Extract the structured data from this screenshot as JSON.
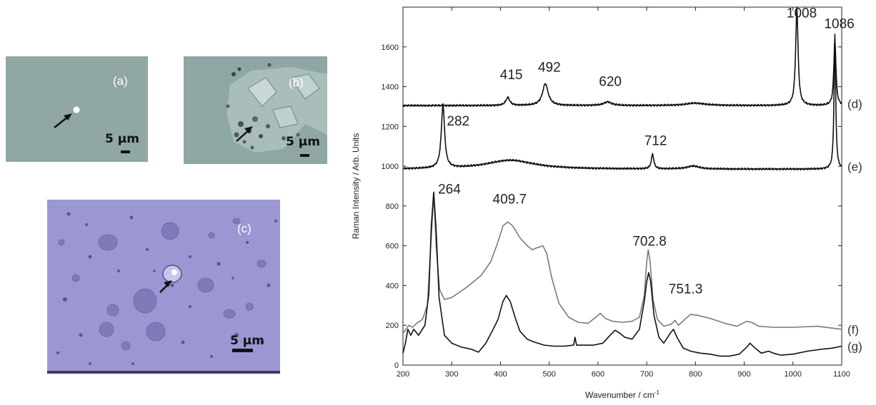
{
  "micrographs": {
    "a": {
      "label": "(a)",
      "scale": "5 μm"
    },
    "b": {
      "label": "(b)",
      "scale": "5 μm"
    },
    "c": {
      "label": "(c)",
      "scale": "5 μm"
    }
  },
  "chart_data": {
    "type": "line",
    "xlabel": "Wavenumber / cm",
    "xlabel_superscript": "-1",
    "ylabel": "Raman Intensity / Arb. Units",
    "xlim": [
      200,
      1100
    ],
    "ylim": [
      0,
      1800
    ],
    "xticks": [
      200,
      300,
      400,
      500,
      600,
      700,
      800,
      900,
      1000,
      1100
    ],
    "yticks": [
      0,
      200,
      400,
      600,
      800,
      1000,
      1200,
      1400,
      1600
    ],
    "colors": {
      "black_trace": "#111111",
      "gray_trace": "#7a7a7a"
    },
    "series": [
      {
        "id": "d",
        "label": "(d)",
        "color": "#111111",
        "baseline": 1305,
        "peaks": [
          {
            "x": 415,
            "label": "415",
            "height": 40,
            "width": 5
          },
          {
            "x": 492,
            "label": "492",
            "height": 110,
            "width": 7
          },
          {
            "x": 620,
            "label": "620",
            "height": 18,
            "width": 10
          },
          {
            "x": 800,
            "height": 12,
            "width": 25
          },
          {
            "x": 1008,
            "label": "1008",
            "height": 490,
            "width": 3
          },
          {
            "x": 1086,
            "label": "1086",
            "height": 340,
            "width": 2.5
          }
        ]
      },
      {
        "id": "e",
        "label": "(e)",
        "color": "#111111",
        "baseline": 985,
        "peaks": [
          {
            "x": 282,
            "label": "282",
            "height": 320,
            "width": 4
          },
          {
            "x": 420,
            "height": 45,
            "width": 60
          },
          {
            "x": 712,
            "label": "712",
            "height": 75,
            "width": 3
          },
          {
            "x": 795,
            "height": 15,
            "width": 15
          },
          {
            "x": 1086,
            "height": 680,
            "width": 2
          }
        ]
      },
      {
        "id": "f",
        "label": "(f)",
        "color": "#7a7a7a",
        "points": [
          [
            200,
            160
          ],
          [
            212,
            200
          ],
          [
            220,
            190
          ],
          [
            228,
            210
          ],
          [
            240,
            230
          ],
          [
            250,
            300
          ],
          [
            257,
            600
          ],
          [
            263,
            860
          ],
          [
            268,
            600
          ],
          [
            275,
            380
          ],
          [
            285,
            330
          ],
          [
            300,
            340
          ],
          [
            330,
            390
          ],
          [
            360,
            450
          ],
          [
            380,
            520
          ],
          [
            395,
            620
          ],
          [
            405,
            700
          ],
          [
            415,
            720
          ],
          [
            425,
            700
          ],
          [
            440,
            640
          ],
          [
            455,
            600
          ],
          [
            465,
            580
          ],
          [
            475,
            590
          ],
          [
            487,
            600
          ],
          [
            495,
            560
          ],
          [
            505,
            440
          ],
          [
            520,
            310
          ],
          [
            540,
            240
          ],
          [
            560,
            215
          ],
          [
            580,
            210
          ],
          [
            595,
            240
          ],
          [
            605,
            260
          ],
          [
            615,
            235
          ],
          [
            630,
            220
          ],
          [
            650,
            215
          ],
          [
            670,
            220
          ],
          [
            685,
            240
          ],
          [
            695,
            350
          ],
          [
            700,
            520
          ],
          [
            703,
            580
          ],
          [
            707,
            520
          ],
          [
            713,
            330
          ],
          [
            722,
            230
          ],
          [
            735,
            195
          ],
          [
            750,
            205
          ],
          [
            758,
            225
          ],
          [
            765,
            200
          ],
          [
            778,
            230
          ],
          [
            790,
            255
          ],
          [
            805,
            250
          ],
          [
            830,
            235
          ],
          [
            860,
            210
          ],
          [
            885,
            195
          ],
          [
            905,
            220
          ],
          [
            915,
            215
          ],
          [
            930,
            195
          ],
          [
            960,
            190
          ],
          [
            1000,
            190
          ],
          [
            1050,
            195
          ],
          [
            1100,
            180
          ]
        ]
      },
      {
        "id": "g",
        "label": "(g)",
        "color": "#111111",
        "points": [
          [
            200,
            60
          ],
          [
            205,
            110
          ],
          [
            210,
            180
          ],
          [
            216,
            150
          ],
          [
            222,
            180
          ],
          [
            232,
            150
          ],
          [
            245,
            200
          ],
          [
            253,
            360
          ],
          [
            258,
            700
          ],
          [
            263,
            870
          ],
          [
            268,
            680
          ],
          [
            274,
            340
          ],
          [
            285,
            150
          ],
          [
            300,
            110
          ],
          [
            320,
            90
          ],
          [
            340,
            80
          ],
          [
            355,
            65
          ],
          [
            370,
            110
          ],
          [
            385,
            180
          ],
          [
            395,
            230
          ],
          [
            405,
            320
          ],
          [
            412,
            350
          ],
          [
            420,
            320
          ],
          [
            430,
            240
          ],
          [
            440,
            170
          ],
          [
            455,
            130
          ],
          [
            470,
            115
          ],
          [
            490,
            100
          ],
          [
            510,
            95
          ],
          [
            530,
            95
          ],
          [
            550,
            100
          ],
          [
            553,
            140
          ],
          [
            556,
            100
          ],
          [
            570,
            100
          ],
          [
            590,
            100
          ],
          [
            610,
            110
          ],
          [
            625,
            150
          ],
          [
            635,
            175
          ],
          [
            645,
            160
          ],
          [
            655,
            140
          ],
          [
            670,
            130
          ],
          [
            685,
            180
          ],
          [
            695,
            320
          ],
          [
            700,
            420
          ],
          [
            704,
            465
          ],
          [
            708,
            420
          ],
          [
            715,
            250
          ],
          [
            725,
            140
          ],
          [
            735,
            110
          ],
          [
            748,
            160
          ],
          [
            755,
            180
          ],
          [
            762,
            140
          ],
          [
            775,
            85
          ],
          [
            790,
            70
          ],
          [
            810,
            60
          ],
          [
            830,
            55
          ],
          [
            850,
            45
          ],
          [
            870,
            45
          ],
          [
            890,
            55
          ],
          [
            905,
            90
          ],
          [
            912,
            110
          ],
          [
            920,
            90
          ],
          [
            935,
            60
          ],
          [
            950,
            70
          ],
          [
            960,
            60
          ],
          [
            975,
            50
          ],
          [
            1000,
            55
          ],
          [
            1030,
            70
          ],
          [
            1060,
            80
          ],
          [
            1080,
            85
          ],
          [
            1100,
            95
          ]
        ]
      }
    ],
    "annotations": [
      {
        "text": "1008",
        "x": 987,
        "y": 1748
      },
      {
        "text": "1086",
        "x": 1064,
        "y": 1694
      },
      {
        "text": "415",
        "x": 399,
        "y": 1438
      },
      {
        "text": "492",
        "x": 477,
        "y": 1475
      },
      {
        "text": "620",
        "x": 602,
        "y": 1403
      },
      {
        "text": "282",
        "x": 290,
        "y": 1204
      },
      {
        "text": "712",
        "x": 695,
        "y": 1107
      },
      {
        "text": "264",
        "x": 272,
        "y": 862
      },
      {
        "text": "409.7",
        "x": 384,
        "y": 812
      },
      {
        "text": "702.8",
        "x": 671,
        "y": 600
      },
      {
        "text": "751.3",
        "x": 745,
        "y": 360
      }
    ]
  }
}
